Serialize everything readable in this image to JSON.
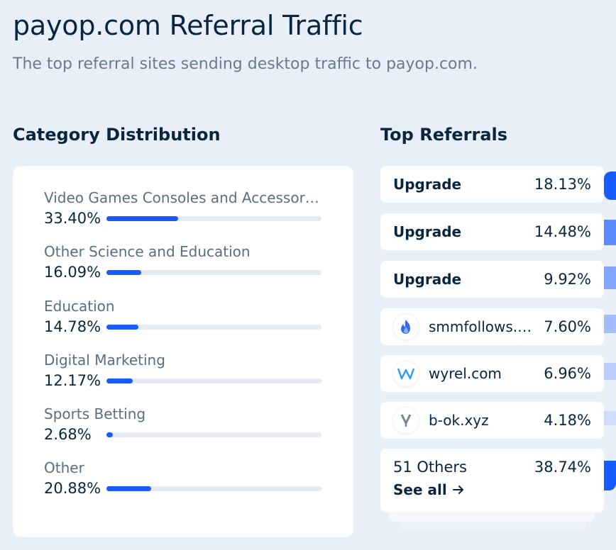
{
  "header": {
    "title": "payop.com Referral Traffic",
    "subtitle": "The top referral sites sending desktop traffic to payop.com."
  },
  "category_section": {
    "heading": "Category Distribution",
    "items": [
      {
        "name": "Video Games Consoles and Accessories",
        "pct_label": "33.40%",
        "pct": 33.4
      },
      {
        "name": "Other Science and Education",
        "pct_label": "16.09%",
        "pct": 16.09
      },
      {
        "name": "Education",
        "pct_label": "14.78%",
        "pct": 14.78
      },
      {
        "name": "Digital Marketing",
        "pct_label": "12.17%",
        "pct": 12.17
      },
      {
        "name": "Sports Betting",
        "pct_label": "2.68%",
        "pct": 2.68
      },
      {
        "name": "Other",
        "pct_label": "20.88%",
        "pct": 20.88
      }
    ]
  },
  "referrals_section": {
    "heading": "Top Referrals",
    "items": [
      {
        "name": "Upgrade",
        "pct": "18.13%",
        "icon": "none",
        "bold": true
      },
      {
        "name": "Upgrade",
        "pct": "14.48%",
        "icon": "none",
        "bold": true
      },
      {
        "name": "Upgrade",
        "pct": "9.92%",
        "icon": "none",
        "bold": true
      },
      {
        "name": "smmfollows.com",
        "pct": "7.60%",
        "icon": "flame-icon",
        "bold": false
      },
      {
        "name": "wyrel.com",
        "pct": "6.96%",
        "icon": "w-logo-icon",
        "bold": false
      },
      {
        "name": "b-ok.xyz",
        "pct": "4.18%",
        "icon": "v-logo-icon",
        "bold": false
      }
    ],
    "others": {
      "label": "51 Others",
      "pct": "38.74%",
      "see_all": "See all"
    }
  },
  "colors": {
    "accent": "#195afe",
    "text": "#092540",
    "muted": "#5c6d80",
    "background": "#e9eff9"
  }
}
